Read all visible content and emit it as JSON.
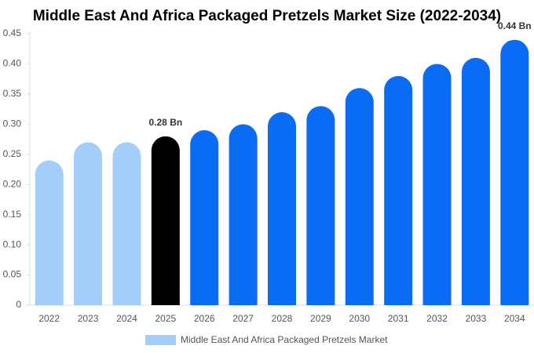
{
  "chart_data": {
    "type": "bar",
    "title": "Middle East And Africa Packaged Pretzels Market Size (2022-2034)",
    "categories": [
      "2022",
      "2023",
      "2024",
      "2025",
      "2026",
      "2027",
      "2028",
      "2029",
      "2030",
      "2031",
      "2032",
      "2033",
      "2034"
    ],
    "series": [
      {
        "name": "Middle East And Africa Packaged Pretzels Market",
        "color": "#a3cdfb",
        "values": [
          0.24,
          0.27,
          0.27,
          0.28,
          0.29,
          0.3,
          0.32,
          0.33,
          0.36,
          0.38,
          0.4,
          0.41,
          0.44
        ],
        "bar_colors": [
          "#a3cdfb",
          "#a3cdfb",
          "#a3cdfb",
          "#000000",
          "#0a6cf5",
          "#0a6cf5",
          "#0a6cf5",
          "#0a6cf5",
          "#0a6cf5",
          "#0a6cf5",
          "#0a6cf5",
          "#0a6cf5",
          "#0a6cf5"
        ],
        "value_labels": [
          null,
          null,
          null,
          "0.28 Bn",
          null,
          null,
          null,
          null,
          null,
          null,
          null,
          null,
          "0.44 Bn"
        ]
      }
    ],
    "ylim": [
      0,
      0.45
    ],
    "yticks": [
      0,
      0.05,
      {
        "value": 0.1,
        "label": "0.10"
      },
      0.15,
      {
        "value": 0.2,
        "label": "0.20"
      },
      0.25,
      {
        "value": 0.3,
        "label": "0.30"
      },
      0.35,
      {
        "value": 0.4,
        "label": "0.40"
      },
      0.45
    ],
    "grid": false,
    "legend": "bottom"
  }
}
